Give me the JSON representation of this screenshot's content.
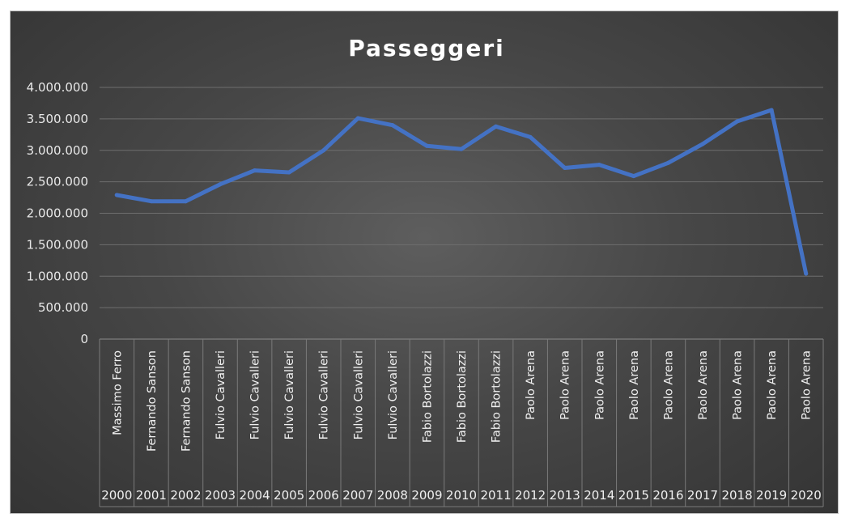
{
  "chart_data": {
    "type": "line",
    "title": "Passeggeri",
    "xlabel": "",
    "ylabel": "",
    "ylim": [
      0,
      4000000
    ],
    "y_ticks": [
      "0",
      "500.000",
      "1.000.000",
      "1.500.000",
      "2.000.000",
      "2.500.000",
      "3.000.000",
      "3.500.000",
      "4.000.000"
    ],
    "y_tick_values": [
      0,
      500000,
      1000000,
      1500000,
      2000000,
      2500000,
      3000000,
      3500000,
      4000000
    ],
    "grid": true,
    "legend": "none",
    "line_color": "#4472c4",
    "categories_level1": [
      "Massimo Ferro",
      "Fernando Sanson",
      "Fernando Sanson",
      "Fulvio Cavalleri",
      "Fulvio Cavalleri",
      "Fulvio Cavalleri",
      "Fulvio Cavalleri",
      "Fulvio Cavalleri",
      "Fulvio Cavalleri",
      "Fabio Bortolazzi",
      "Fabio Bortolazzi",
      "Fabio Bortolazzi",
      "Paolo Arena",
      "Paolo Arena",
      "Paolo Arena",
      "Paolo Arena",
      "Paolo Arena",
      "Paolo Arena",
      "Paolo Arena",
      "Paolo Arena",
      "Paolo Arena"
    ],
    "categories_level2": [
      "2000",
      "2001",
      "2002",
      "2003",
      "2004",
      "2005",
      "2006",
      "2007",
      "2008",
      "2009",
      "2010",
      "2011",
      "2012",
      "2013",
      "2014",
      "2015",
      "2016",
      "2017",
      "2018",
      "2019",
      "2020"
    ],
    "series": [
      {
        "values": [
          2290000,
          2190000,
          2190000,
          2460000,
          2680000,
          2650000,
          3000000,
          3510000,
          3400000,
          3070000,
          3020000,
          3380000,
          3210000,
          2720000,
          2770000,
          2590000,
          2800000,
          3100000,
          3460000,
          3640000,
          1040000
        ]
      }
    ]
  }
}
